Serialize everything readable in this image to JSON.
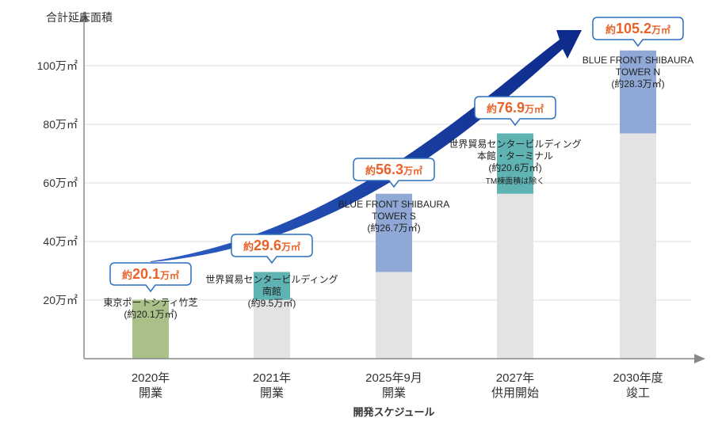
{
  "chart_data": {
    "type": "bar",
    "ylabel": "合計延床面積",
    "xlabel": "開発スケジュール",
    "ylim": [
      0,
      120
    ],
    "yticks": [
      {
        "value": 20,
        "label": "20万㎡"
      },
      {
        "value": 40,
        "label": "40万㎡"
      },
      {
        "value": 60,
        "label": "60万㎡"
      },
      {
        "value": 80,
        "label": "80万㎡"
      },
      {
        "value": 100,
        "label": "100万㎡"
      }
    ],
    "categories": [
      {
        "line1": "2020年",
        "line2": "開業"
      },
      {
        "line1": "2021年",
        "line2": "開業"
      },
      {
        "line1": "2025年9月",
        "line2": "開業"
      },
      {
        "line1": "2027年",
        "line2": "供用開始"
      },
      {
        "line1": "2030年度",
        "line2": "竣工"
      }
    ],
    "bars": [
      {
        "base": 0,
        "add": 20.1,
        "add_color": "#a9c088",
        "total_prefix": "約",
        "total_num": "20.1",
        "total_unit": "万㎡",
        "note": [
          "東京ポートシティ竹芝",
          "(約20.1万㎡)"
        ],
        "note_small": ""
      },
      {
        "base": 20.1,
        "add": 9.5,
        "add_color": "#5fb3b3",
        "total_prefix": "約",
        "total_num": "29.6",
        "total_unit": "万㎡",
        "note": [
          "世界貿易センタービルディング",
          "南館",
          "(約9.5万㎡)"
        ],
        "note_small": ""
      },
      {
        "base": 29.6,
        "add": 26.7,
        "add_color": "#8fa8d6",
        "total_prefix": "約",
        "total_num": "56.3",
        "total_unit": "万㎡",
        "note": [
          "BLUE FRONT SHIBAURA",
          "TOWER S",
          "(約26.7万㎡)"
        ],
        "note_small": ""
      },
      {
        "base": 56.3,
        "add": 20.6,
        "add_color": "#5fb3b3",
        "total_prefix": "約",
        "total_num": "76.9",
        "total_unit": "万㎡",
        "note": [
          "世界貿易センタービルディング",
          "本館・ターミナル",
          "(約20.6万㎡)"
        ],
        "note_small": "TM棟面積は除く"
      },
      {
        "base": 76.9,
        "add": 28.3,
        "add_color": "#8fa8d6",
        "total_prefix": "約",
        "total_num": "105.2",
        "total_unit": "万㎡",
        "note": [
          "BLUE FRONT SHIBAURA",
          "TOWER N",
          "(約28.3万㎡)"
        ],
        "note_small": ""
      }
    ],
    "base_color": "#e3e3e3",
    "arrow_color": "#1a3f9e",
    "callout_border": "#2b6fc0",
    "callout_text_color": "#e8632a",
    "grid": true
  }
}
